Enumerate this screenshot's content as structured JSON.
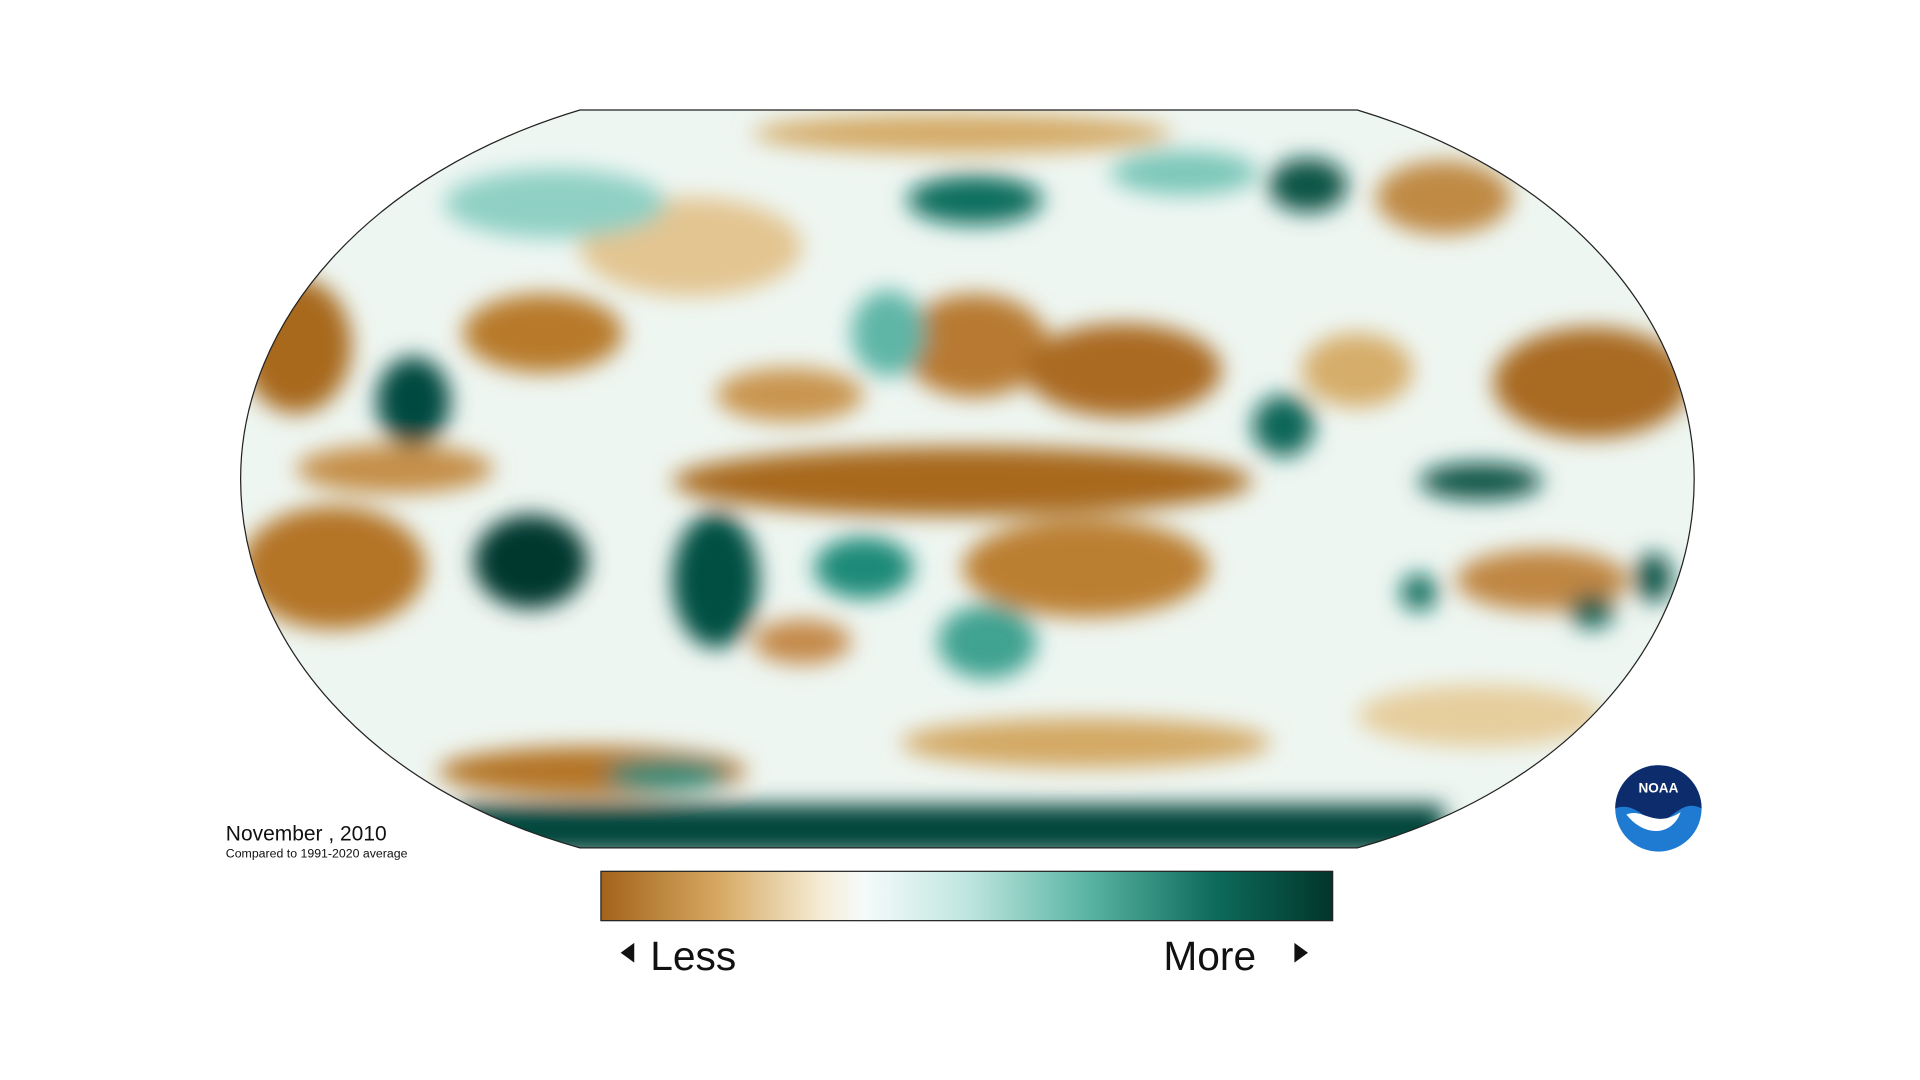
{
  "caption": {
    "date": "November , 2010",
    "subtitle": "Compared to 1991-2020 average"
  },
  "legend": {
    "low": "Less",
    "high": "More"
  },
  "logo": "NOAA"
}
